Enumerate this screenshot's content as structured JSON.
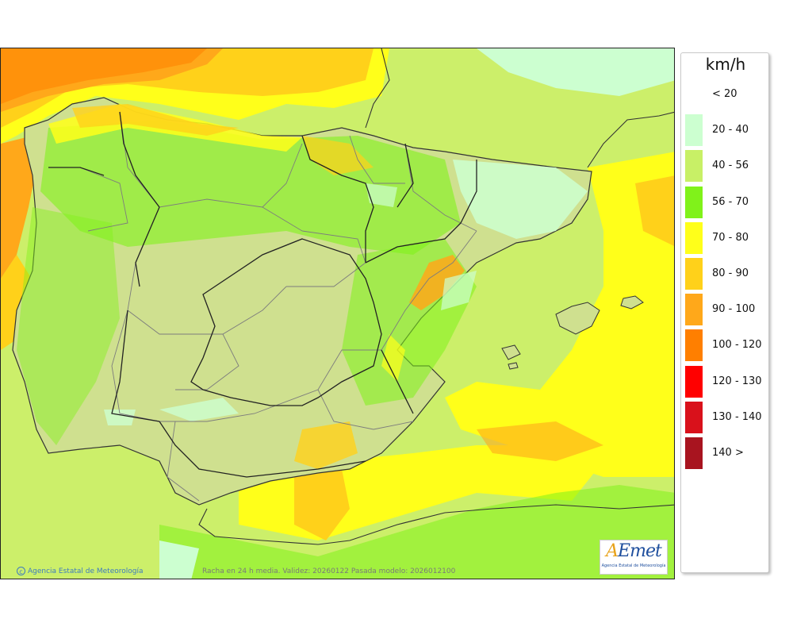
{
  "legend": {
    "unit": "km/h",
    "items": [
      {
        "label": "< 20",
        "color": "#ffffff"
      },
      {
        "label": "20 - 40",
        "color": "#ccffd0"
      },
      {
        "label": "40 - 56",
        "color": "#c8f066"
      },
      {
        "label": "56 - 70",
        "color": "#80f21a"
      },
      {
        "label": "70 - 80",
        "color": "#ffff1a"
      },
      {
        "label": "80 - 90",
        "color": "#ffd11a"
      },
      {
        "label": "90 - 100",
        "color": "#ffa81a"
      },
      {
        "label": "100 - 120",
        "color": "#ff7f00"
      },
      {
        "label": "120 - 130",
        "color": "#ff0000"
      },
      {
        "label": "130 - 140",
        "color": "#d9111b"
      },
      {
        "label": "140 >",
        "color": "#a8141f"
      }
    ]
  },
  "credits": {
    "agency": "Agencia Estatal de Meteorología",
    "copyright_symbol": "c",
    "validity": "Racha en 24 h media. Validez: 20260122 Pasada modelo: 2026012100"
  },
  "logo": {
    "a": "A",
    "rest": "Emet",
    "subtitle": "Agencia Estatal de Meteorología"
  },
  "map": {
    "land_color": "#cfe08f",
    "sea_colors": {
      "light": "#ccef6a",
      "green": "#80f21a",
      "yellow": "#ffff1a",
      "orange": "#ffd11a",
      "dark_orange": "#ffa81a",
      "red_orange": "#ff7f00",
      "pale": "#ccffd0"
    }
  }
}
